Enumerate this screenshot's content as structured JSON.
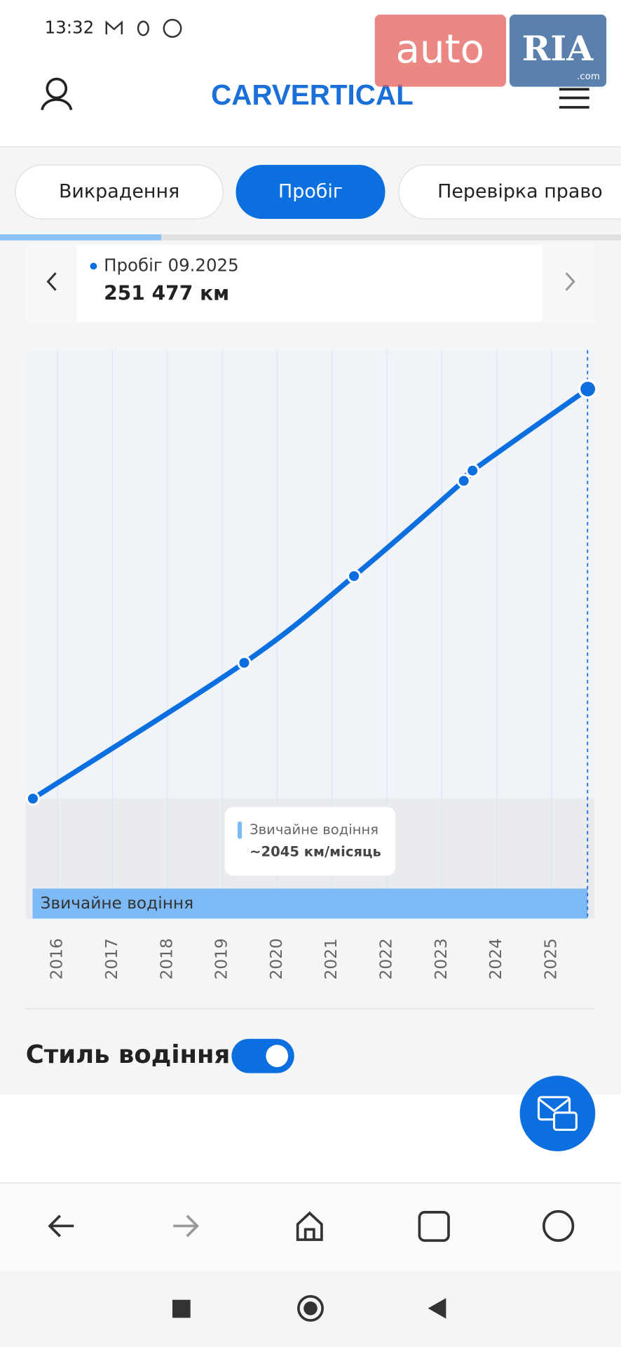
{
  "status_bar": {
    "time": "13:32"
  },
  "header": {
    "logo": "CARVERTICAL"
  },
  "tabs": [
    "Викрадення",
    "Пробіг",
    "Перевірка право"
  ],
  "card": {
    "label": "Пробіг 09.2025",
    "value": "251 477 км"
  },
  "chart_data": {
    "type": "line",
    "x": [
      2015.55,
      2019.4,
      2021.4,
      2023.4,
      2023.56,
      2025.66
    ],
    "values": [
      3000,
      85400,
      138000,
      195800,
      202000,
      251477
    ],
    "color": "#0b6fe0",
    "xlim": [
      2015.42,
      2025.78
    ],
    "xticks": [
      2016,
      2017,
      2018,
      2019,
      2020,
      2021,
      2022,
      2023,
      2024,
      2025
    ],
    "ylim": [
      0,
      275000
    ],
    "grid": true,
    "band_label": "Звичайне водіння",
    "tooltip_title": "Звичайне водіння",
    "tooltip_text": "~2045 км/місяць"
  },
  "section": {
    "title": "Стиль водіння"
  },
  "watermark": {
    "brand": "auto",
    "ria": "RIA",
    "domain": ".com"
  }
}
